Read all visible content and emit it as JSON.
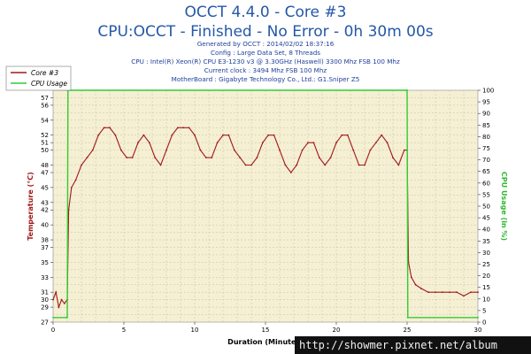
{
  "header": {
    "title": "OCCT 4.4.0 - Core #3",
    "subtitle": "CPU:OCCT - Finished - No Error - 0h 30m 00s",
    "info_lines": [
      "Generated by OCCT : 2014/02/02 18:37:16",
      "Config : Large Data Set, 8 Threads",
      "CPU : Intel(R) Xeon(R) CPU E3-1230 v3 @ 3.30GHz (Haswell) 3300 Mhz FSB 100 Mhz",
      "Current clock : 3494 Mhz FSB 100 Mhz",
      "MotherBoard : Gigabyte Technology Co., Ltd.: G1.Sniper Z5"
    ]
  },
  "watermark": "http://showmer.pixnet.net/album",
  "colors": {
    "plot_bg": "#f5efd4",
    "grid": "#c9c0a0",
    "temperature": "#a01818",
    "cpu_usage": "#33cc33",
    "title": "#2457a8",
    "info": "#1f3f9c"
  },
  "chart_data": {
    "type": "line",
    "title": "OCCT 4.4.0 - Core #3",
    "subtitle": "CPU:OCCT - Finished - No Error - 0h 30m 00s",
    "xlabel": "Duration (Minutes)",
    "ylabel_left": "Temperature (°C)",
    "ylabel_right": "CPU Usage (in %)",
    "xlim": [
      0,
      30
    ],
    "ylim_left": [
      27,
      58
    ],
    "ylim_right": [
      0,
      100
    ],
    "x_ticks": [
      "0",
      "5",
      "10",
      "15",
      "20",
      "25",
      "30"
    ],
    "y_left_ticks": [
      "27",
      "28",
      "29",
      "30",
      "31",
      "32",
      "33",
      "34",
      "35",
      "36",
      "37",
      "38",
      "39",
      "40",
      "41",
      "42",
      "43",
      "44",
      "45",
      "46",
      "47",
      "48",
      "49",
      "50",
      "51",
      "52",
      "53",
      "54",
      "55",
      "56",
      "57",
      "58"
    ],
    "y_left_tick_labels": [
      "27",
      "29",
      "30",
      "31",
      "33",
      "35",
      "37",
      "38",
      "40",
      "42",
      "43",
      "45",
      "47",
      "48",
      "50",
      "51",
      "52",
      "54",
      "56",
      "57"
    ],
    "y_right_ticks": [
      "0",
      "5",
      "10",
      "15",
      "20",
      "25",
      "30",
      "35",
      "40",
      "45",
      "50",
      "55",
      "60",
      "65",
      "70",
      "75",
      "80",
      "85",
      "90",
      "95",
      "100"
    ],
    "grid": true,
    "legend_placement": "top-left",
    "series": [
      {
        "name": "Core #3",
        "axis": "left",
        "x": [
          0,
          0.2,
          0.4,
          0.6,
          0.8,
          1.0,
          1.1,
          1.3,
          1.6,
          2.0,
          2.4,
          2.8,
          3.2,
          3.6,
          4.0,
          4.4,
          4.8,
          5.2,
          5.6,
          6.0,
          6.4,
          6.8,
          7.2,
          7.6,
          8.0,
          8.4,
          8.8,
          9.2,
          9.6,
          10.0,
          10.4,
          10.8,
          11.2,
          11.6,
          12.0,
          12.4,
          12.8,
          13.2,
          13.6,
          14.0,
          14.4,
          14.8,
          15.2,
          15.6,
          16.0,
          16.4,
          16.8,
          17.2,
          17.6,
          18.0,
          18.4,
          18.8,
          19.2,
          19.6,
          20.0,
          20.4,
          20.8,
          21.2,
          21.6,
          22.0,
          22.4,
          22.8,
          23.2,
          23.6,
          24.0,
          24.4,
          24.8,
          25.0,
          25.1,
          25.3,
          25.6,
          26.0,
          26.5,
          27.0,
          27.5,
          28.0,
          28.5,
          29.0,
          29.5,
          30.0
        ],
        "values": [
          30,
          31,
          29,
          30,
          29.5,
          30,
          42,
          45,
          46,
          48,
          49,
          50,
          52,
          53,
          53,
          52,
          50,
          49,
          49,
          51,
          52,
          51,
          49,
          48,
          50,
          52,
          53,
          53,
          53,
          52,
          50,
          49,
          49,
          51,
          52,
          52,
          50,
          49,
          48,
          48,
          49,
          51,
          52,
          52,
          50,
          48,
          47,
          48,
          50,
          51,
          51,
          49,
          48,
          49,
          51,
          52,
          52,
          50,
          48,
          48,
          50,
          51,
          52,
          51,
          49,
          48,
          50,
          50,
          35,
          33,
          32,
          31.5,
          31,
          31,
          31,
          31,
          31,
          30.5,
          31,
          31
        ]
      },
      {
        "name": "CPU Usage",
        "axis": "right",
        "x": [
          0,
          0.9,
          1.0,
          1.05,
          24.95,
          25.0,
          25.05,
          30
        ],
        "values": [
          2,
          2,
          2,
          100,
          100,
          100,
          2,
          2
        ]
      }
    ]
  }
}
